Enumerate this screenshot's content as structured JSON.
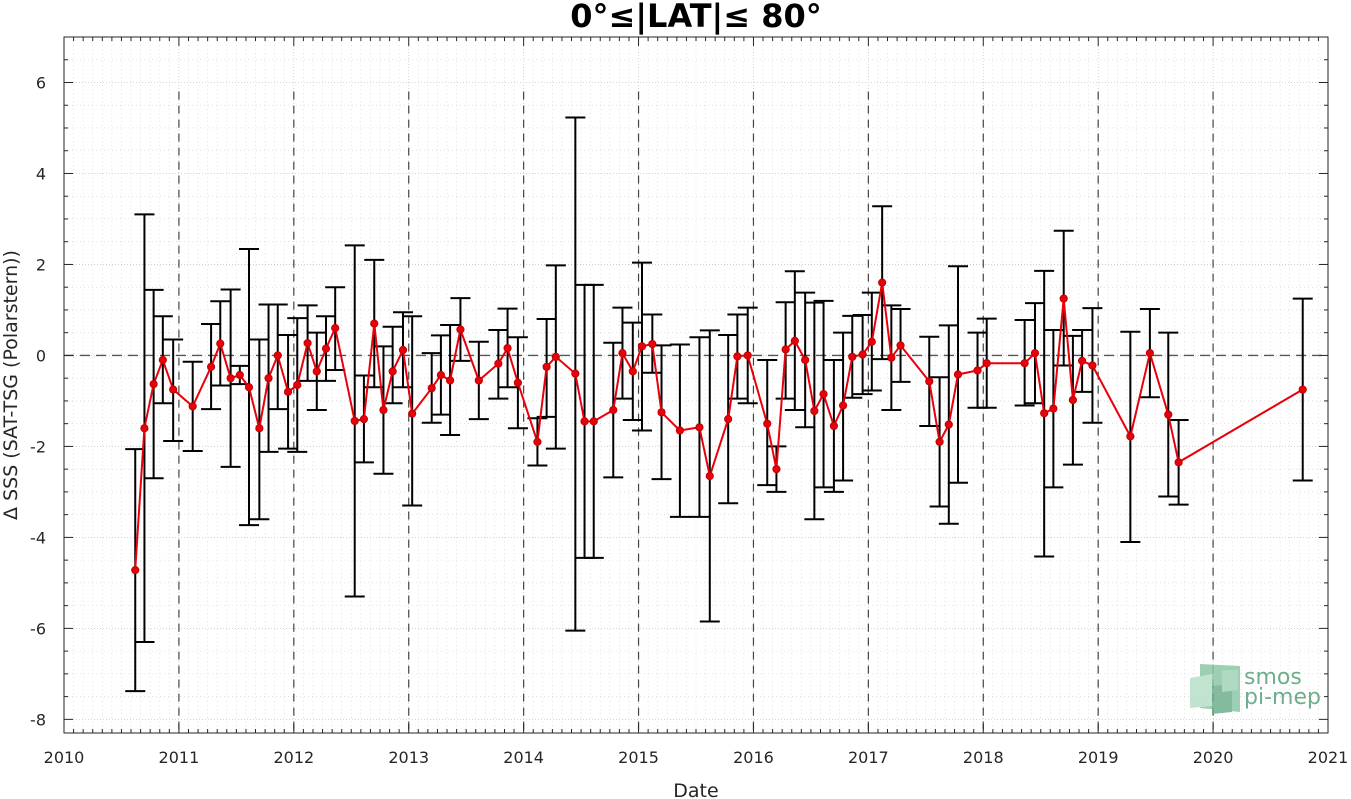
{
  "chart_data": {
    "type": "line",
    "title": "0°≤|LAT|≤ 80°",
    "xlabel": "Date",
    "ylabel": "Δ SSS (SAT-TSG (Polarstern))",
    "xlim": [
      2010,
      2021
    ],
    "ylim": [
      -8.3,
      7
    ],
    "x_ticks": [
      "2010",
      "2011",
      "2012",
      "2013",
      "2014",
      "2015",
      "2016",
      "2017",
      "2018",
      "2019",
      "2020",
      "2021"
    ],
    "y_ticks": [
      "-8",
      "-6",
      "-4",
      "-2",
      "0",
      "2",
      "4",
      "6"
    ],
    "y_tick_values": [
      -8,
      -6,
      -4,
      -2,
      0,
      2,
      4,
      6
    ],
    "grid": true,
    "reference_line_y": 0,
    "year_separator_lines": [
      2011,
      2012,
      2013,
      2014,
      2015,
      2016,
      2017,
      2018,
      2019,
      2020
    ],
    "colors": {
      "series": "#e8000b",
      "errorbar": "#000000",
      "grid": "#d0d0d0"
    },
    "series": [
      {
        "points": [
          {
            "x": 2010.62,
            "y": -4.72,
            "low": -7.38,
            "high": -2.06
          },
          {
            "x": 2010.7,
            "y": -1.6,
            "low": -6.3,
            "high": 3.1
          },
          {
            "x": 2010.78,
            "y": -0.63,
            "low": -2.7,
            "high": 1.44
          },
          {
            "x": 2010.86,
            "y": -0.1,
            "low": -1.05,
            "high": 0.86
          },
          {
            "x": 2010.95,
            "y": -0.75,
            "low": -1.88,
            "high": 0.35
          },
          {
            "x": 2011.12,
            "y": -1.12,
            "low": -2.1,
            "high": -0.14
          },
          {
            "x": 2011.28,
            "y": -0.25,
            "low": -1.18,
            "high": 0.69
          },
          {
            "x": 2011.36,
            "y": 0.26,
            "low": -0.66,
            "high": 1.19
          },
          {
            "x": 2011.45,
            "y": -0.5,
            "low": -2.45,
            "high": 1.45
          },
          {
            "x": 2011.53,
            "y": -0.43,
            "low": -0.63,
            "high": -0.23
          },
          {
            "x": 2011.61,
            "y": -0.7,
            "low": -3.73,
            "high": 2.34
          },
          {
            "x": 2011.7,
            "y": -1.6,
            "low": -3.6,
            "high": 0.35
          },
          {
            "x": 2011.78,
            "y": -0.5,
            "low": -2.12,
            "high": 1.12
          },
          {
            "x": 2011.86,
            "y": 0.0,
            "low": -1.18,
            "high": 1.12
          },
          {
            "x": 2011.95,
            "y": -0.8,
            "low": -2.05,
            "high": 0.45
          },
          {
            "x": 2012.03,
            "y": -0.65,
            "low": -2.12,
            "high": 0.82
          },
          {
            "x": 2012.12,
            "y": 0.27,
            "low": -0.56,
            "high": 1.1
          },
          {
            "x": 2012.2,
            "y": -0.35,
            "low": -1.2,
            "high": 0.5
          },
          {
            "x": 2012.28,
            "y": 0.15,
            "low": -0.56,
            "high": 0.86
          },
          {
            "x": 2012.36,
            "y": 0.6,
            "low": -0.32,
            "high": 1.5
          },
          {
            "x": 2012.53,
            "y": -1.44,
            "low": -5.3,
            "high": 2.42
          },
          {
            "x": 2012.61,
            "y": -1.4,
            "low": -2.35,
            "high": -0.44
          },
          {
            "x": 2012.7,
            "y": 0.7,
            "low": -0.7,
            "high": 2.1
          },
          {
            "x": 2012.78,
            "y": -1.2,
            "low": -2.6,
            "high": 0.2
          },
          {
            "x": 2012.86,
            "y": -0.35,
            "low": -1.05,
            "high": 0.63
          },
          {
            "x": 2012.95,
            "y": 0.12,
            "low": -0.7,
            "high": 0.95
          },
          {
            "x": 2013.03,
            "y": -1.28,
            "low": -3.3,
            "high": 0.86
          },
          {
            "x": 2013.2,
            "y": -0.72,
            "low": -1.48,
            "high": 0.05
          },
          {
            "x": 2013.28,
            "y": -0.43,
            "low": -1.3,
            "high": 0.44
          },
          {
            "x": 2013.36,
            "y": -0.55,
            "low": -1.75,
            "high": 0.67
          },
          {
            "x": 2013.45,
            "y": 0.57,
            "low": -0.12,
            "high": 1.26
          },
          {
            "x": 2013.61,
            "y": -0.55,
            "low": -1.4,
            "high": 0.3
          },
          {
            "x": 2013.78,
            "y": -0.18,
            "low": -0.95,
            "high": 0.56
          },
          {
            "x": 2013.86,
            "y": 0.16,
            "low": -0.7,
            "high": 1.03
          },
          {
            "x": 2013.95,
            "y": -0.6,
            "low": -1.6,
            "high": 0.4
          },
          {
            "x": 2014.12,
            "y": -1.9,
            "low": -2.42,
            "high": -1.38
          },
          {
            "x": 2014.2,
            "y": -0.25,
            "low": -1.35,
            "high": 0.8
          },
          {
            "x": 2014.28,
            "y": -0.03,
            "low": -2.05,
            "high": 1.98
          },
          {
            "x": 2014.45,
            "y": -0.4,
            "low": -6.05,
            "high": 5.23
          },
          {
            "x": 2014.53,
            "y": -1.45,
            "low": -4.45,
            "high": 1.55
          },
          {
            "x": 2014.61,
            "y": -1.45,
            "low": -4.45,
            "high": 1.55
          },
          {
            "x": 2014.78,
            "y": -1.2,
            "low": -2.68,
            "high": 0.28
          },
          {
            "x": 2014.86,
            "y": 0.05,
            "low": -0.95,
            "high": 1.05
          },
          {
            "x": 2014.95,
            "y": -0.35,
            "low": -1.42,
            "high": 0.72
          },
          {
            "x": 2015.03,
            "y": 0.2,
            "low": -1.65,
            "high": 2.04
          },
          {
            "x": 2015.12,
            "y": 0.25,
            "low": -0.38,
            "high": 0.9
          },
          {
            "x": 2015.2,
            "y": -1.25,
            "low": -2.72,
            "high": 0.22
          },
          {
            "x": 2015.36,
            "y": -1.65,
            "low": -3.55,
            "high": 0.24
          },
          {
            "x": 2015.53,
            "y": -1.58,
            "low": -3.55,
            "high": 0.4
          },
          {
            "x": 2015.62,
            "y": -2.65,
            "low": -5.85,
            "high": 0.55
          },
          {
            "x": 2015.78,
            "y": -1.4,
            "low": -3.25,
            "high": 0.45
          },
          {
            "x": 2015.86,
            "y": -0.02,
            "low": -0.95,
            "high": 0.9
          },
          {
            "x": 2015.95,
            "y": 0.0,
            "low": -1.05,
            "high": 1.05
          },
          {
            "x": 2016.12,
            "y": -1.5,
            "low": -2.85,
            "high": -0.1
          },
          {
            "x": 2016.2,
            "y": -2.5,
            "low": -3.0,
            "high": -2.0
          },
          {
            "x": 2016.28,
            "y": 0.13,
            "low": -0.95,
            "high": 1.17
          },
          {
            "x": 2016.36,
            "y": 0.32,
            "low": -1.2,
            "high": 1.85
          },
          {
            "x": 2016.45,
            "y": -0.1,
            "low": -1.58,
            "high": 1.38
          },
          {
            "x": 2016.53,
            "y": -1.22,
            "low": -3.6,
            "high": 1.16
          },
          {
            "x": 2016.61,
            "y": -0.85,
            "low": -2.9,
            "high": 1.2
          },
          {
            "x": 2016.7,
            "y": -1.55,
            "low": -3.0,
            "high": -0.1
          },
          {
            "x": 2016.78,
            "y": -1.1,
            "low": -2.75,
            "high": 0.5
          },
          {
            "x": 2016.86,
            "y": -0.03,
            "low": -0.93,
            "high": 0.87
          },
          {
            "x": 2016.95,
            "y": 0.02,
            "low": -0.85,
            "high": 0.89
          },
          {
            "x": 2017.03,
            "y": 0.3,
            "low": -0.77,
            "high": 1.38
          },
          {
            "x": 2017.12,
            "y": 1.6,
            "low": -0.08,
            "high": 3.28
          },
          {
            "x": 2017.2,
            "y": -0.05,
            "low": -1.2,
            "high": 1.1
          },
          {
            "x": 2017.28,
            "y": 0.22,
            "low": -0.58,
            "high": 1.02
          },
          {
            "x": 2017.53,
            "y": -0.57,
            "low": -1.55,
            "high": 0.41
          },
          {
            "x": 2017.62,
            "y": -1.9,
            "low": -3.32,
            "high": -0.48
          },
          {
            "x": 2017.7,
            "y": -1.52,
            "low": -3.7,
            "high": 0.66
          },
          {
            "x": 2017.78,
            "y": -0.42,
            "low": -2.8,
            "high": 1.96
          },
          {
            "x": 2017.95,
            "y": -0.33,
            "low": -1.15,
            "high": 0.5
          },
          {
            "x": 2018.03,
            "y": -0.17,
            "low": -1.15,
            "high": 0.81
          },
          {
            "x": 2018.36,
            "y": -0.17,
            "low": -1.1,
            "high": 0.78
          },
          {
            "x": 2018.45,
            "y": 0.05,
            "low": -1.05,
            "high": 1.15
          },
          {
            "x": 2018.53,
            "y": -1.27,
            "low": -4.42,
            "high": 1.86
          },
          {
            "x": 2018.61,
            "y": -1.17,
            "low": -2.9,
            "high": 0.56
          },
          {
            "x": 2018.7,
            "y": 1.25,
            "low": -0.22,
            "high": 2.74
          },
          {
            "x": 2018.78,
            "y": -0.98,
            "low": -2.4,
            "high": 0.43
          },
          {
            "x": 2018.86,
            "y": -0.12,
            "low": -0.8,
            "high": 0.56
          },
          {
            "x": 2018.95,
            "y": -0.22,
            "low": -1.48,
            "high": 1.04
          },
          {
            "x": 2019.28,
            "y": -1.78,
            "low": -4.1,
            "high": 0.52
          },
          {
            "x": 2019.45,
            "y": 0.05,
            "low": -0.92,
            "high": 1.02
          },
          {
            "x": 2019.61,
            "y": -1.3,
            "low": -3.1,
            "high": 0.5
          },
          {
            "x": 2019.7,
            "y": -2.35,
            "low": -3.28,
            "high": -1.42
          },
          {
            "x": 2020.78,
            "y": -0.75,
            "low": -2.75,
            "high": 1.25
          }
        ]
      }
    ]
  },
  "logo": {
    "line1": "smos",
    "line2": "pi-mep",
    "icon": "smos-cube-logo-icon"
  }
}
